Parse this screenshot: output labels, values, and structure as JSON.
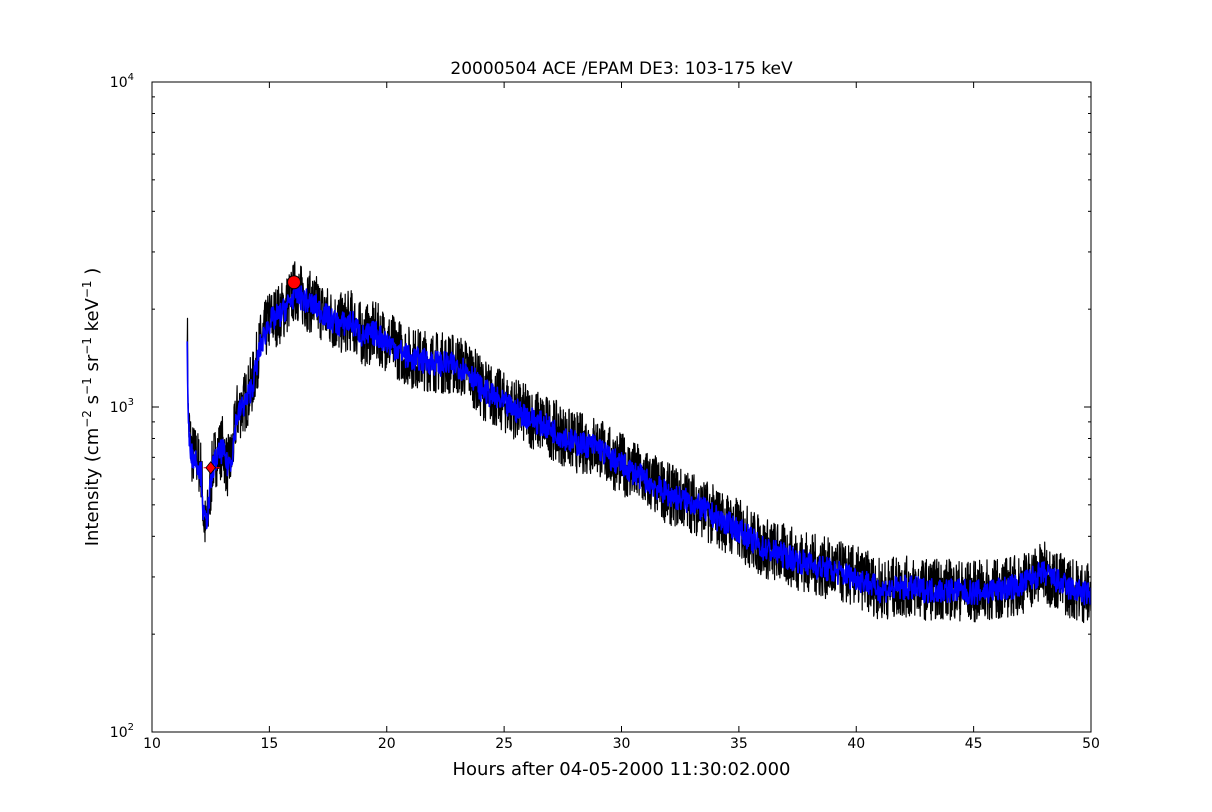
{
  "chart_data": {
    "type": "line",
    "title": "20000504 ACE /EPAM DE3: 103-175 keV",
    "xlabel": "Hours after 04-05-2000 11:30:02.000",
    "ylabel": {
      "prefix": "Intensity (cm",
      "exp1": "−2",
      "s": " s",
      "exp2": "−1",
      "sr": " sr",
      "exp3": "−1",
      "kev": " keV",
      "exp4": "−1",
      "suffix": " )"
    },
    "xlim": [
      10,
      50
    ],
    "ylim": [
      100,
      10000
    ],
    "yscale": "log",
    "grid": false,
    "x_ticks": [
      "10",
      "15",
      "20",
      "25",
      "30",
      "35",
      "40",
      "45",
      "50"
    ],
    "y_ticks": [
      {
        "value": 100,
        "base": "10",
        "exp": "2"
      },
      {
        "value": 1000,
        "base": "10",
        "exp": "3"
      },
      {
        "value": 10000,
        "base": "10",
        "exp": "4"
      }
    ],
    "series": [
      {
        "style": "raw",
        "color": "#000000",
        "x": [
          11.5,
          11.55,
          11.7,
          11.9,
          12.1,
          12.2,
          12.3,
          12.4,
          12.6,
          12.8,
          13.0,
          13.2,
          13.4,
          13.6,
          14.0,
          14.3,
          14.6,
          15.0,
          15.5,
          15.9,
          16.1,
          16.5,
          17.0,
          17.5,
          18.0,
          18.5,
          19.0,
          19.5,
          20.0,
          21.0,
          22.0,
          23.0,
          23.5,
          24.0,
          25.0,
          26.0,
          27.0,
          28.0,
          29.0,
          29.5,
          30.0,
          31.0,
          32.0,
          33.0,
          34.0,
          35.0,
          36.0,
          37.0,
          38.0,
          39.0,
          40.0,
          40.5,
          41.0,
          42.0,
          43.0,
          44.0,
          45.0,
          46.0,
          47.0,
          47.5,
          48.0,
          49.0,
          50.0
        ],
        "y": [
          1850,
          900,
          720,
          700,
          640,
          450,
          420,
          480,
          680,
          720,
          760,
          650,
          700,
          950,
          1050,
          1200,
          1550,
          1850,
          1950,
          2150,
          2300,
          2150,
          2050,
          1900,
          1800,
          1850,
          1650,
          1700,
          1600,
          1420,
          1380,
          1350,
          1300,
          1150,
          1030,
          940,
          860,
          780,
          760,
          700,
          670,
          600,
          540,
          510,
          460,
          420,
          370,
          350,
          330,
          315,
          300,
          290,
          275,
          280,
          275,
          275,
          270,
          275,
          285,
          300,
          310,
          280,
          265
        ]
      },
      {
        "style": "smoothed",
        "color": "#0000ff",
        "x": [
          11.5,
          11.55,
          11.7,
          11.9,
          12.1,
          12.2,
          12.3,
          12.4,
          12.6,
          12.8,
          13.0,
          13.2,
          13.4,
          13.6,
          14.0,
          14.3,
          14.6,
          15.0,
          15.5,
          15.9,
          16.1,
          16.5,
          17.0,
          17.5,
          18.0,
          18.5,
          19.0,
          19.5,
          20.0,
          21.0,
          22.0,
          23.0,
          23.5,
          24.0,
          25.0,
          26.0,
          27.0,
          28.0,
          29.0,
          29.5,
          30.0,
          31.0,
          32.0,
          33.0,
          34.0,
          35.0,
          36.0,
          37.0,
          38.0,
          39.0,
          40.0,
          40.5,
          41.0,
          42.0,
          43.0,
          44.0,
          45.0,
          46.0,
          47.0,
          47.5,
          48.0,
          49.0,
          50.0
        ],
        "y": [
          1500,
          850,
          710,
          690,
          620,
          460,
          440,
          490,
          660,
          700,
          740,
          660,
          700,
          930,
          1040,
          1180,
          1520,
          1830,
          1930,
          2120,
          2250,
          2130,
          2030,
          1880,
          1790,
          1830,
          1640,
          1690,
          1590,
          1410,
          1370,
          1340,
          1290,
          1140,
          1020,
          935,
          855,
          775,
          755,
          695,
          665,
          598,
          538,
          508,
          458,
          418,
          368,
          348,
          328,
          313,
          298,
          288,
          273,
          278,
          273,
          273,
          268,
          273,
          283,
          298,
          308,
          278,
          263
        ]
      }
    ],
    "markers": [
      {
        "shape": "diamond",
        "x": 12.5,
        "y": 650,
        "color": "#ff0000",
        "error_x": [
          12.2,
          12.9
        ]
      },
      {
        "shape": "circle",
        "x": 16.05,
        "y": 2420,
        "color": "#ff0000"
      }
    ]
  }
}
